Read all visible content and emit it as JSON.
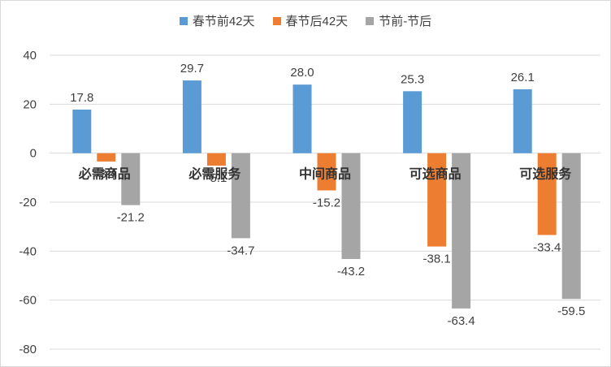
{
  "chart_data": {
    "type": "bar",
    "categories": [
      "必需商品",
      "必需服务",
      "中间商品",
      "可选商品",
      "可选服务"
    ],
    "series": [
      {
        "name": "春节前42天",
        "color": "#5b9bd5",
        "values": [
          17.8,
          29.7,
          28.0,
          25.3,
          26.1
        ]
      },
      {
        "name": "春节后42天",
        "color": "#ed7d31",
        "values": [
          -3.4,
          -5.1,
          -15.2,
          -38.1,
          -33.4
        ]
      },
      {
        "name": "节前-节后",
        "color": "#a5a5a5",
        "values": [
          -21.2,
          -34.7,
          -43.2,
          -63.4,
          -59.5
        ]
      }
    ],
    "ylim": [
      -80,
      40
    ],
    "yticks": [
      "40",
      "20",
      "0",
      "-20",
      "-40",
      "-60",
      "-80"
    ],
    "ytick_values": [
      40,
      20,
      0,
      -20,
      -40,
      -60,
      -80
    ],
    "grid": true,
    "legend": "top-center",
    "title": "",
    "xlabel": "",
    "ylabel": ""
  }
}
